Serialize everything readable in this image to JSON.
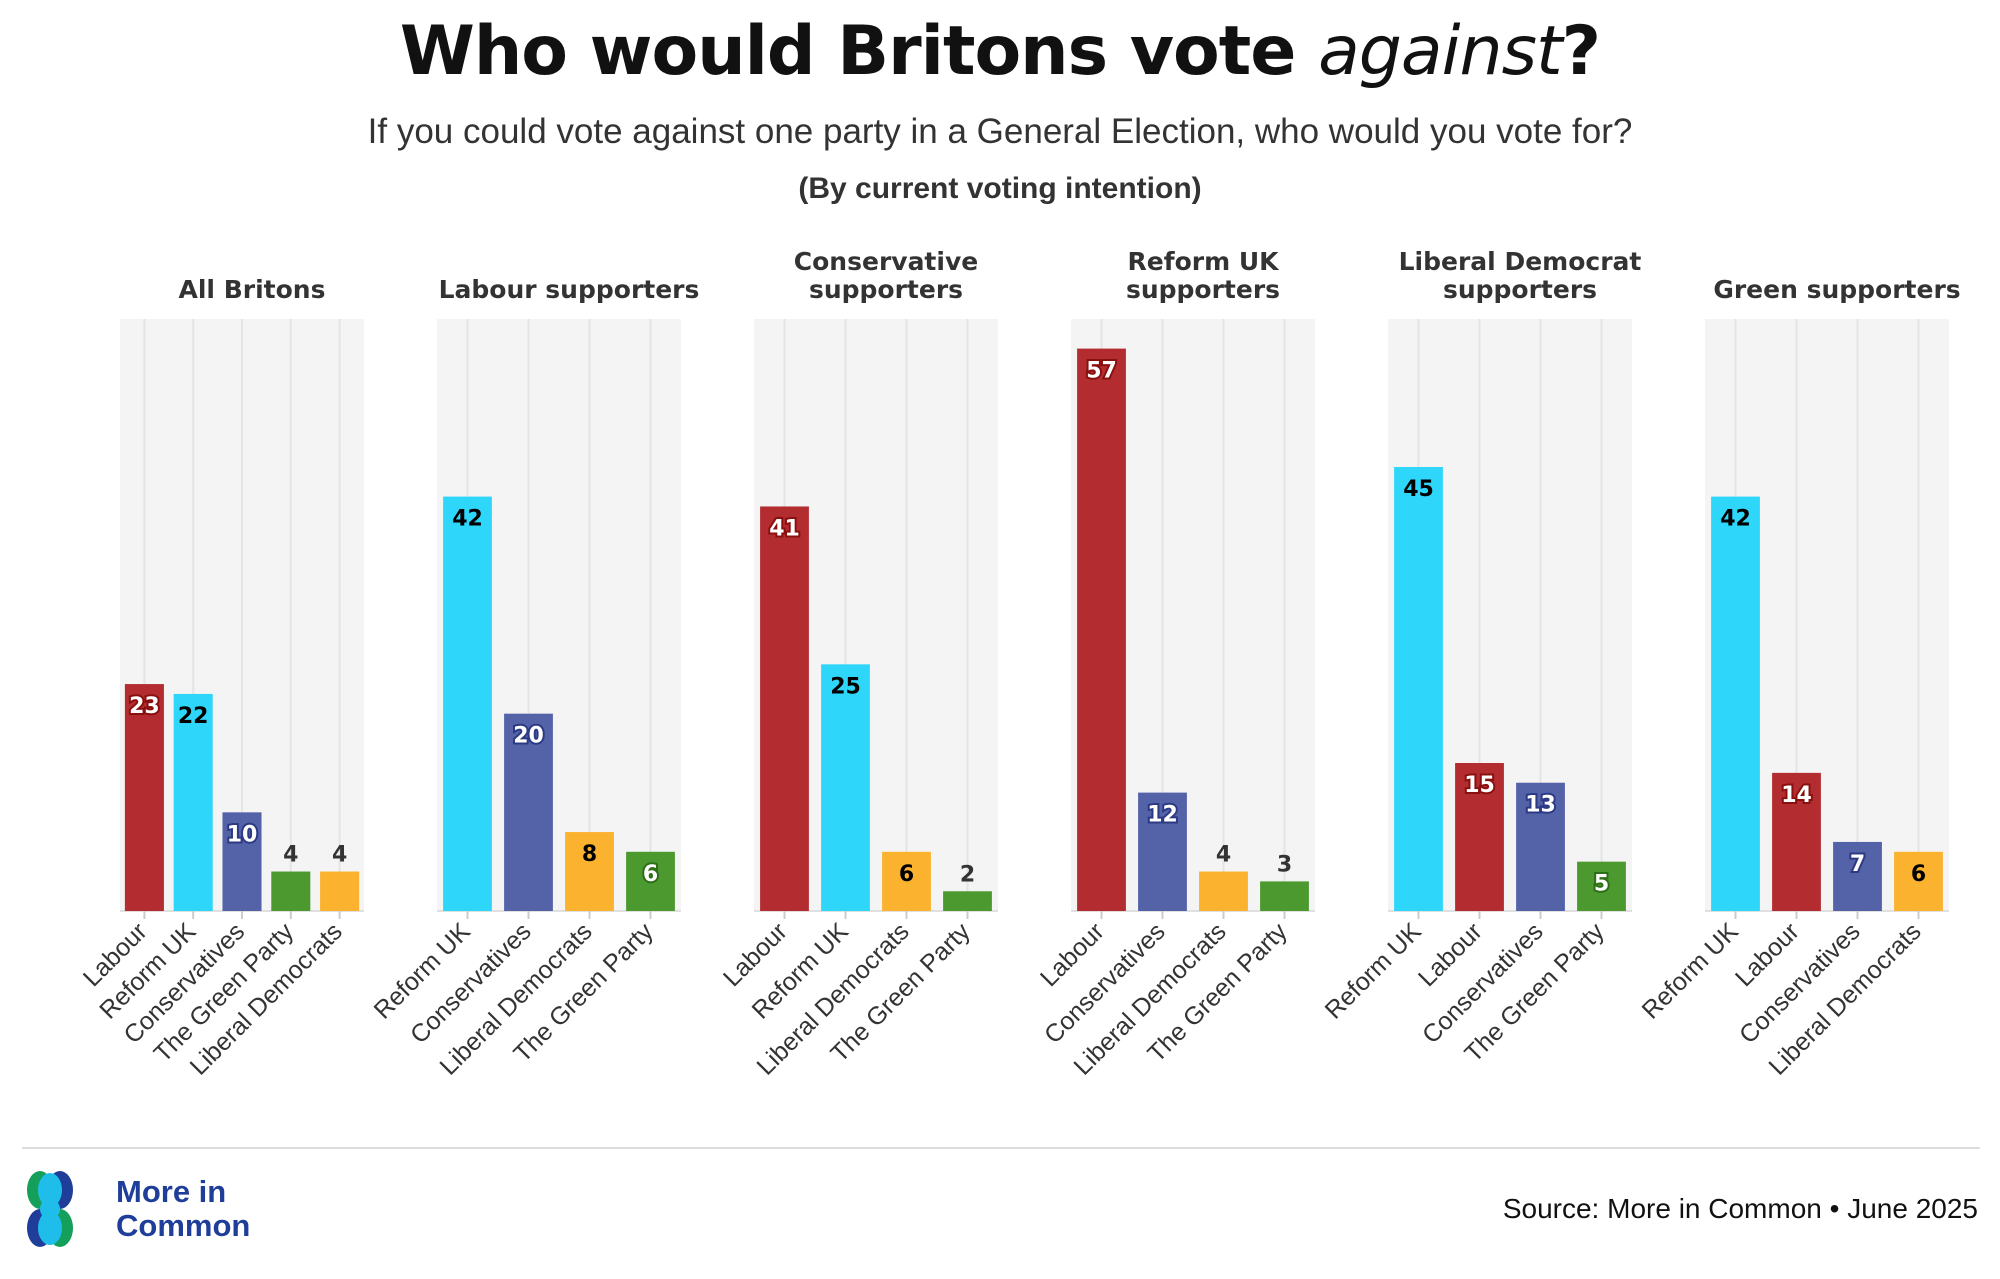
{
  "header": {
    "title_before": "Who would Britons vote ",
    "title_italic": "against",
    "title_after": "?",
    "subtitle": "If you could vote against one party in a General Election, who would you vote for?",
    "note": "(By current voting intention)"
  },
  "footer": {
    "logo_text": "More in Common",
    "logo_line1": "More in",
    "logo_line2": "Common",
    "source": "Source: More in Common • June 2025"
  },
  "colors": {
    "Labour": "#b22c30",
    "Reform UK": "#2ed6fa",
    "Conservatives": "#5462a8",
    "The Green Party": "#4b992f",
    "Liberal Democrats": "#fbb22e",
    "panel_bg": "#f4f4f4"
  },
  "chart_data": [
    {
      "type": "bar",
      "title": [
        "All Britons"
      ],
      "categories": [
        "Labour",
        "Reform UK",
        "Conservatives",
        "The Green Party",
        "Liberal Democrats"
      ],
      "values": [
        23,
        22,
        10,
        4,
        4
      ],
      "ylim": [
        0,
        60
      ],
      "grid": true
    },
    {
      "type": "bar",
      "title": [
        "Labour supporters"
      ],
      "categories": [
        "Reform UK",
        "Conservatives",
        "Liberal Democrats",
        "The Green Party"
      ],
      "values": [
        42,
        20,
        8,
        6
      ],
      "ylim": [
        0,
        60
      ],
      "grid": true
    },
    {
      "type": "bar",
      "title": [
        "Conservative",
        "supporters"
      ],
      "categories": [
        "Labour",
        "Reform UK",
        "Liberal Democrats",
        "The Green Party"
      ],
      "values": [
        41,
        25,
        6,
        2
      ],
      "ylim": [
        0,
        60
      ],
      "grid": true
    },
    {
      "type": "bar",
      "title": [
        "Reform UK",
        "supporters"
      ],
      "categories": [
        "Labour",
        "Conservatives",
        "Liberal Democrats",
        "The Green Party"
      ],
      "values": [
        57,
        12,
        4,
        3
      ],
      "ylim": [
        0,
        60
      ],
      "grid": true
    },
    {
      "type": "bar",
      "title": [
        "Liberal Democrat",
        "supporters"
      ],
      "categories": [
        "Reform UK",
        "Labour",
        "Conservatives",
        "The Green Party"
      ],
      "values": [
        45,
        15,
        13,
        5
      ],
      "ylim": [
        0,
        60
      ],
      "grid": true
    },
    {
      "type": "bar",
      "title": [
        "Green supporters"
      ],
      "categories": [
        "Reform UK",
        "Labour",
        "Conservatives",
        "Liberal Democrats"
      ],
      "values": [
        42,
        14,
        7,
        6
      ],
      "ylim": [
        0,
        60
      ],
      "grid": true
    }
  ]
}
